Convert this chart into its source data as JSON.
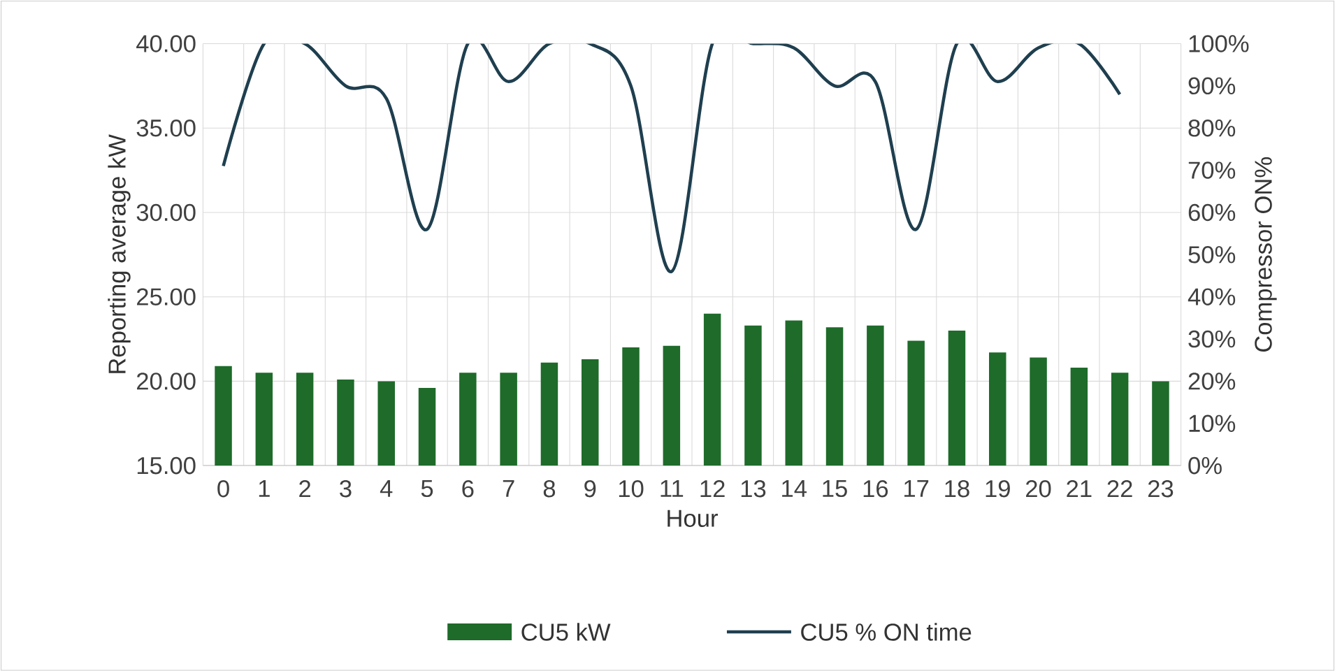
{
  "chart_data": {
    "type": "bar",
    "xlabel": "Hour",
    "ylabel": "Reporting average kW",
    "y2label": "Compressor ON%",
    "categories": [
      "0",
      "1",
      "2",
      "3",
      "4",
      "5",
      "6",
      "7",
      "8",
      "9",
      "10",
      "11",
      "12",
      "13",
      "14",
      "15",
      "16",
      "17",
      "18",
      "19",
      "20",
      "21",
      "22",
      "23"
    ],
    "series": [
      {
        "name": "CU5 kW",
        "color": "#1e6b2a",
        "values": [
          20.9,
          20.5,
          20.5,
          20.1,
          20.0,
          19.6,
          20.5,
          20.5,
          21.1,
          21.3,
          22.0,
          22.1,
          24.0,
          23.3,
          23.6,
          23.2,
          23.3,
          22.4,
          23.0,
          21.7,
          21.4,
          20.8,
          20.5,
          20.0
        ]
      },
      {
        "name": "CU5 % ON time",
        "type": "line",
        "axis": "y2",
        "color": "#1f3f4f",
        "values": [
          71,
          100,
          100,
          90,
          87,
          56,
          100,
          91,
          100,
          100,
          90,
          46,
          100,
          100,
          99,
          90,
          91,
          56,
          100,
          91,
          99,
          100,
          88,
          null
        ]
      }
    ],
    "ylim": [
      15,
      40
    ],
    "yticks": [
      {
        "value": 15,
        "label": "15.00"
      },
      {
        "value": 20,
        "label": "20.00"
      },
      {
        "value": 25,
        "label": "25.00"
      },
      {
        "value": 30,
        "label": "30.00"
      },
      {
        "value": 35,
        "label": "35.00"
      },
      {
        "value": 40,
        "label": "40.00"
      }
    ],
    "y2lim": [
      0,
      100
    ],
    "y2ticks": [
      {
        "value": 0,
        "label": "0%"
      },
      {
        "value": 10,
        "label": "10%"
      },
      {
        "value": 20,
        "label": "20%"
      },
      {
        "value": 30,
        "label": "30%"
      },
      {
        "value": 40,
        "label": "40%"
      },
      {
        "value": 50,
        "label": "50%"
      },
      {
        "value": 60,
        "label": "60%"
      },
      {
        "value": 70,
        "label": "70%"
      },
      {
        "value": 80,
        "label": "80%"
      },
      {
        "value": 90,
        "label": "90%"
      },
      {
        "value": 100,
        "label": "100%"
      }
    ],
    "grid": true,
    "legend": "bottom",
    "marker": "none",
    "line_style": "solid"
  }
}
